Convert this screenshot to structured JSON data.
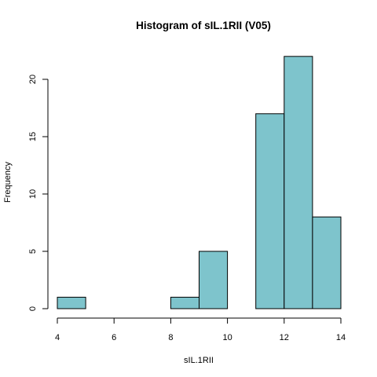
{
  "chart_data": {
    "type": "bar",
    "title": "Histogram of sIL.1RII (V05)",
    "xlabel": "sIL.1RII",
    "ylabel": "Frequency",
    "bins": [
      {
        "start": 4,
        "end": 5,
        "count": 1
      },
      {
        "start": 5,
        "end": 6,
        "count": 0
      },
      {
        "start": 6,
        "end": 7,
        "count": 0
      },
      {
        "start": 7,
        "end": 8,
        "count": 0
      },
      {
        "start": 8,
        "end": 9,
        "count": 1
      },
      {
        "start": 9,
        "end": 10,
        "count": 5
      },
      {
        "start": 10,
        "end": 11,
        "count": 0
      },
      {
        "start": 11,
        "end": 12,
        "count": 17
      },
      {
        "start": 12,
        "end": 13,
        "count": 22
      },
      {
        "start": 13,
        "end": 14,
        "count": 8
      }
    ],
    "xlim": [
      4,
      14
    ],
    "ylim": [
      0,
      22
    ],
    "x_ticks": [
      4,
      6,
      8,
      10,
      12,
      14
    ],
    "y_ticks": [
      0,
      5,
      10,
      15,
      20
    ],
    "bar_color": "#7ec4cc",
    "grid": false
  }
}
